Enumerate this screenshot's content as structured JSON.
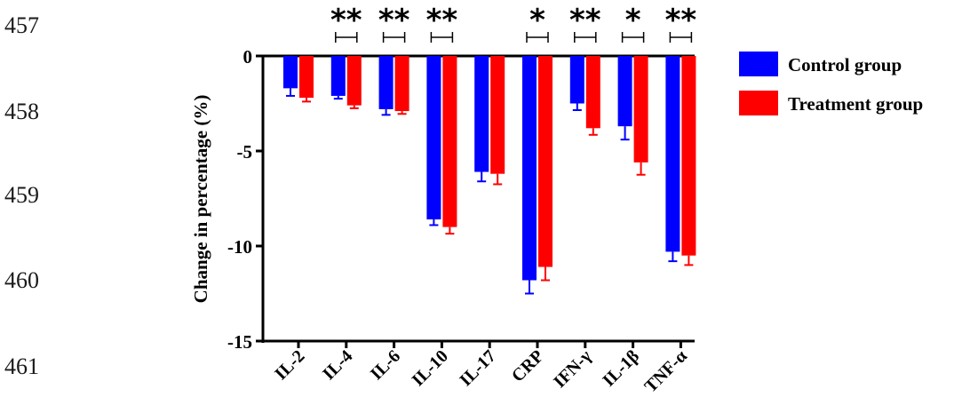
{
  "line_numbers": [
    "457",
    "458",
    "459",
    "460",
    "461"
  ],
  "colors": {
    "control": "#0000ff",
    "treatment": "#ff0000",
    "axis": "#000000"
  },
  "chart_data": {
    "type": "bar",
    "title": "",
    "xlabel": "",
    "ylabel": "Change in percentage (%)",
    "ylim": [
      -15,
      0
    ],
    "yticks": [
      0,
      -5,
      -10,
      -15
    ],
    "ytick_labels": [
      "0",
      "-5",
      "-10",
      "-15"
    ],
    "categories": [
      "IL-2",
      "IL-4",
      "IL-6",
      "IL-10",
      "IL-17",
      "CRP",
      "IFN-γ",
      "IL-1β",
      "TNF-α"
    ],
    "series": [
      {
        "name": "Control group",
        "color": "#0000ff",
        "values": [
          -1.7,
          -2.1,
          -2.8,
          -8.6,
          -6.1,
          -11.8,
          -2.5,
          -3.7,
          -10.3
        ],
        "errors": [
          0.4,
          0.15,
          0.3,
          0.3,
          0.5,
          0.7,
          0.35,
          0.7,
          0.5
        ]
      },
      {
        "name": "Treatment group",
        "color": "#ff0000",
        "values": [
          -2.2,
          -2.6,
          -2.9,
          -9.0,
          -6.2,
          -11.1,
          -3.8,
          -5.6,
          -10.5
        ],
        "errors": [
          0.2,
          0.15,
          0.15,
          0.35,
          0.55,
          0.7,
          0.35,
          0.65,
          0.5
        ]
      }
    ],
    "significance": [
      "",
      "**",
      "**",
      "**",
      "",
      "*",
      "**",
      "*",
      "**"
    ],
    "legend_position": "right",
    "grid": false
  }
}
